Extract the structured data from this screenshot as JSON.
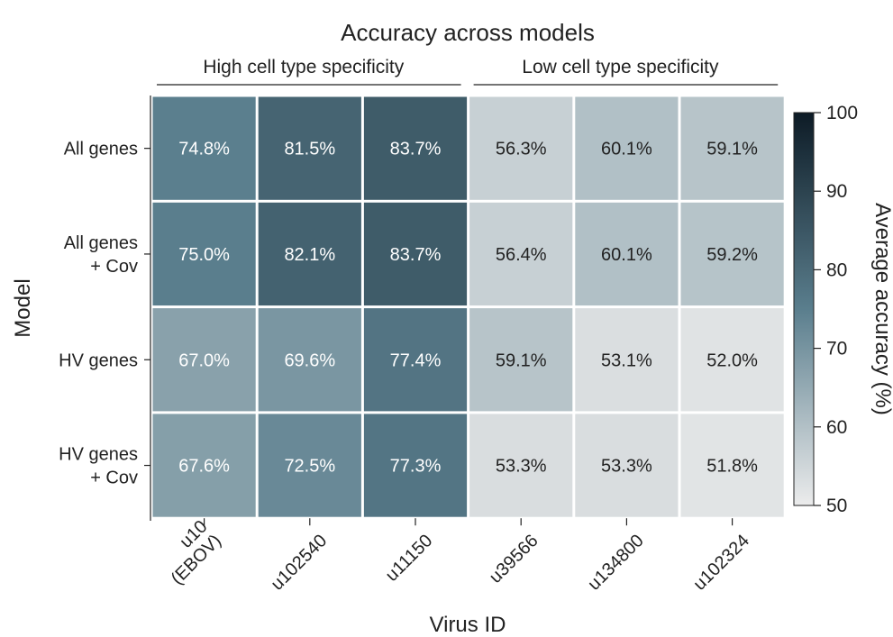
{
  "chart_data": {
    "type": "heatmap",
    "title": "Accuracy across models",
    "groups": [
      {
        "label": "High cell type specificity",
        "start": 0,
        "end": 2
      },
      {
        "label": "Low cell type specificity",
        "start": 3,
        "end": 5
      }
    ],
    "ylabel": "Model",
    "xlabel": "Virus ID",
    "rows": [
      [
        "All genes"
      ],
      [
        "All genes",
        "+ Cov"
      ],
      [
        "HV genes"
      ],
      [
        "HV genes",
        "+ Cov"
      ]
    ],
    "columns": [
      [
        "u10",
        "(EBOV)"
      ],
      [
        "u102540"
      ],
      [
        "u11150"
      ],
      [
        "u39566"
      ],
      [
        "u134800"
      ],
      [
        "u102324"
      ]
    ],
    "values": [
      [
        74.8,
        81.5,
        83.7,
        56.3,
        60.1,
        59.1
      ],
      [
        75.0,
        82.1,
        83.7,
        56.4,
        60.1,
        59.2
      ],
      [
        67.0,
        69.6,
        77.4,
        59.1,
        53.1,
        52.0
      ],
      [
        67.6,
        72.5,
        77.3,
        53.3,
        53.3,
        51.8
      ]
    ],
    "value_labels": [
      [
        "74.8%",
        "81.5%",
        "83.7%",
        "56.3%",
        "60.1%",
        "59.1%"
      ],
      [
        "75.0%",
        "82.1%",
        "83.7%",
        "56.4%",
        "60.1%",
        "59.2%"
      ],
      [
        "67.0%",
        "69.6%",
        "77.4%",
        "59.1%",
        "53.1%",
        "52.0%"
      ],
      [
        "67.6%",
        "72.5%",
        "77.3%",
        "53.3%",
        "53.3%",
        "51.8%"
      ]
    ],
    "colorbar": {
      "label": "Average accuracy (%)",
      "min": 50,
      "max": 100,
      "ticks": [
        "50",
        "60",
        "70",
        "80",
        "90",
        "100"
      ],
      "tick_values": [
        50,
        60,
        70,
        80,
        90,
        100
      ]
    },
    "colors": {
      "low": "#ececec",
      "mid": "#5a7e8d",
      "high": "#0d1b26",
      "text_dark": "#222222",
      "text_light": "#ffffff"
    },
    "legend_position": "right"
  }
}
